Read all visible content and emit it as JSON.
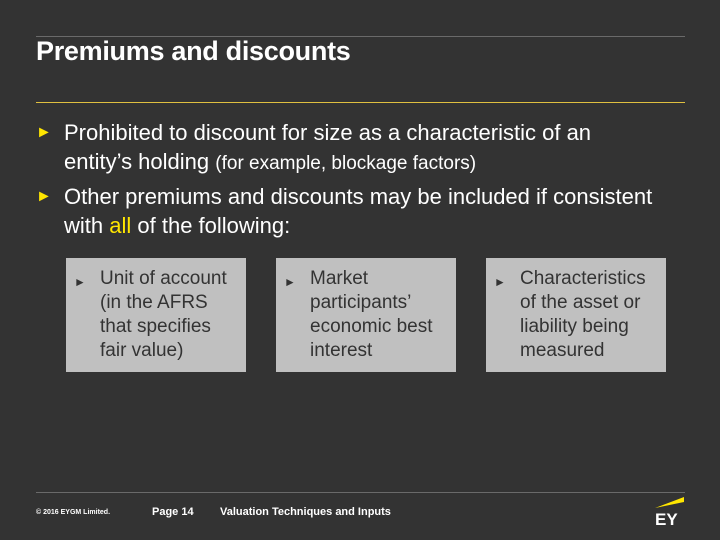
{
  "title": "Premiums and discounts",
  "bullets": [
    {
      "text": "Prohibited to discount for size as a characteristic of an entity’s holding",
      "note": "(for example, blockage factors)"
    },
    {
      "text_before": "Other premiums and discounts may be included if consistent with",
      "highlight": "all",
      "text_after": "of the following:"
    }
  ],
  "boxes": [
    "Unit of account (in the AFRS that specifies fair value)",
    "Market participants’ economic best interest",
    "Characteristics of the asset or liability being measured"
  ],
  "footer": {
    "copyright": "© 2016 EYGM Limited.",
    "page": "Page 14",
    "section": "Valuation Techniques and Inputs",
    "logo": "EY"
  },
  "colors": {
    "background": "#333333",
    "accent": "#ffe600",
    "box": "#c0c0c0"
  }
}
